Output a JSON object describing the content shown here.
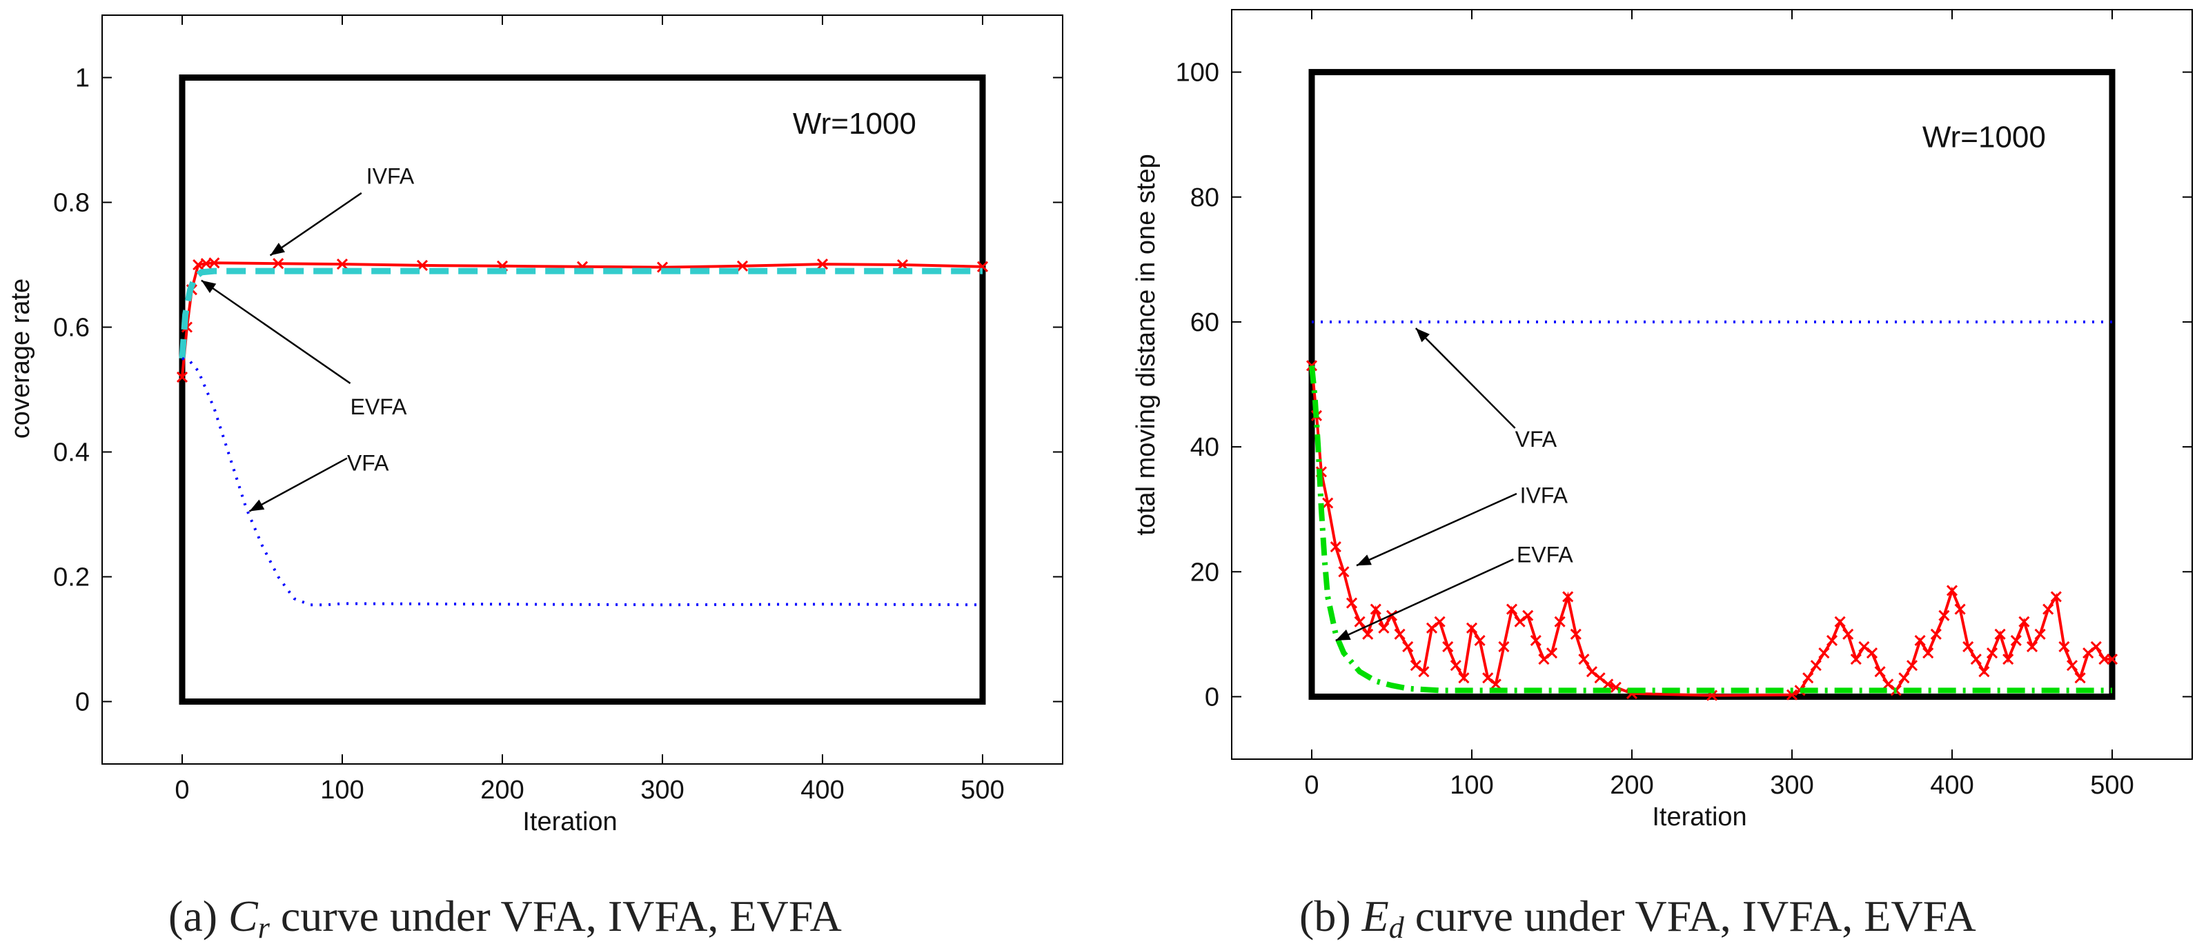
{
  "chart_data": [
    {
      "type": "line",
      "panel": "a",
      "xlabel": "Iteration",
      "ylabel": "coverage rate",
      "xlim": [
        -50,
        550
      ],
      "ylim": [
        -0.1,
        1.1
      ],
      "xticks": [
        0,
        100,
        200,
        300,
        400,
        500
      ],
      "yticks": [
        0,
        0.2,
        0.4,
        0.6,
        0.8,
        1
      ],
      "box": {
        "x0": 0,
        "x1": 500,
        "y0": 0,
        "y1": 1
      },
      "annotation": "Wr=1000",
      "series": [
        {
          "name": "IVFA",
          "color": "#ff0000",
          "style": "x-markers",
          "x": [
            0,
            3,
            6,
            10,
            15,
            20,
            60,
            100,
            150,
            200,
            250,
            300,
            350,
            400,
            450,
            500
          ],
          "y": [
            0.52,
            0.6,
            0.66,
            0.7,
            0.702,
            0.703,
            0.702,
            0.701,
            0.699,
            0.698,
            0.697,
            0.696,
            0.698,
            0.701,
            0.7,
            0.697
          ]
        },
        {
          "name": "EVFA",
          "color": "#33cccc",
          "style": "dashed",
          "x": [
            0,
            2,
            5,
            8,
            12,
            20,
            100,
            200,
            300,
            400,
            500
          ],
          "y": [
            0.55,
            0.62,
            0.66,
            0.68,
            0.688,
            0.69,
            0.69,
            0.69,
            0.69,
            0.69,
            0.69
          ]
        },
        {
          "name": "VFA",
          "color": "#0000ff",
          "style": "dotted",
          "x": [
            0,
            5,
            10,
            20,
            30,
            40,
            50,
            60,
            70,
            80,
            90,
            100,
            200,
            300,
            400,
            500
          ],
          "y": [
            0.55,
            0.545,
            0.53,
            0.47,
            0.39,
            0.31,
            0.25,
            0.2,
            0.165,
            0.155,
            0.155,
            0.157,
            0.156,
            0.155,
            0.156,
            0.155
          ]
        }
      ],
      "arrows": [
        {
          "label": "IVFA",
          "text_at": [
            115,
            0.83
          ],
          "from": [
            112,
            0.815
          ],
          "to": [
            55,
            0.715
          ]
        },
        {
          "label": "EVFA",
          "text_at": [
            105,
            0.46
          ],
          "from": [
            105,
            0.51
          ],
          "to": [
            12,
            0.675
          ]
        },
        {
          "label": "VFA",
          "text_at": [
            103,
            0.37
          ],
          "from": [
            103,
            0.39
          ],
          "to": [
            42,
            0.305
          ]
        }
      ]
    },
    {
      "type": "line",
      "panel": "b",
      "xlabel": "Iteration",
      "ylabel": "total moving distance in one step",
      "xlim": [
        -50,
        550
      ],
      "ylim": [
        -10,
        110
      ],
      "xticks": [
        0,
        100,
        200,
        300,
        400,
        500
      ],
      "yticks": [
        0,
        20,
        40,
        60,
        80,
        100
      ],
      "box": {
        "x0": 0,
        "x1": 500,
        "y0": 0,
        "y1": 100
      },
      "annotation": "Wr=1000",
      "series": [
        {
          "name": "VFA",
          "color": "#0000ff",
          "style": "dotted",
          "x": [
            0,
            100,
            200,
            300,
            400,
            500
          ],
          "y": [
            60,
            60,
            60,
            60,
            60,
            60
          ]
        },
        {
          "name": "IVFA",
          "color": "#ff0000",
          "style": "x-markers",
          "x": [
            0,
            3,
            6,
            10,
            15,
            20,
            25,
            30,
            35,
            40,
            45,
            50,
            55,
            60,
            65,
            70,
            75,
            80,
            85,
            90,
            95,
            100,
            105,
            110,
            115,
            120,
            125,
            130,
            135,
            140,
            145,
            150,
            155,
            160,
            165,
            170,
            175,
            180,
            185,
            190,
            200,
            250,
            300,
            305,
            310,
            315,
            320,
            325,
            330,
            335,
            340,
            345,
            350,
            355,
            360,
            365,
            370,
            375,
            380,
            385,
            390,
            395,
            400,
            405,
            410,
            415,
            420,
            425,
            430,
            435,
            440,
            445,
            450,
            455,
            460,
            465,
            470,
            475,
            480,
            485,
            490,
            495,
            500
          ],
          "y": [
            53,
            45,
            36,
            31,
            24,
            20,
            15,
            12,
            10,
            14,
            11,
            13,
            10,
            8,
            5,
            4,
            11,
            12,
            8,
            5,
            3,
            11,
            9,
            3,
            2,
            8,
            14,
            12,
            13,
            9,
            6,
            7,
            12,
            16,
            10,
            6,
            4,
            3,
            2,
            1.5,
            0.5,
            0.2,
            0.3,
            1,
            3,
            5,
            7,
            9,
            12,
            10,
            6,
            8,
            7,
            4,
            2,
            1,
            3,
            5,
            9,
            7,
            10,
            13,
            17,
            14,
            8,
            6,
            4,
            7,
            10,
            6,
            9,
            12,
            8,
            10,
            14,
            16,
            8,
            5,
            3,
            7,
            8,
            6,
            6
          ]
        },
        {
          "name": "EVFA",
          "color": "#00dd00",
          "style": "dash-dot",
          "x": [
            0,
            2,
            4,
            6,
            8,
            10,
            15,
            20,
            30,
            40,
            50,
            60,
            80,
            100,
            150,
            200,
            250,
            300,
            350,
            400,
            450,
            500
          ],
          "y": [
            53,
            48,
            40,
            30,
            22,
            16,
            10,
            7,
            4,
            2.5,
            1.8,
            1.3,
            1,
            1,
            1,
            1,
            1,
            1,
            1,
            1,
            1,
            1
          ]
        }
      ],
      "arrows": [
        {
          "label": "VFA",
          "text_at": [
            127,
            40
          ],
          "from": [
            127,
            43
          ],
          "to": [
            65,
            59
          ]
        },
        {
          "label": "IVFA",
          "text_at": [
            130,
            31
          ],
          "from": [
            128,
            32.5
          ],
          "to": [
            28,
            21
          ]
        },
        {
          "label": "EVFA",
          "text_at": [
            128,
            21.5
          ],
          "from": [
            126,
            22
          ],
          "to": [
            15,
            9
          ]
        }
      ]
    }
  ],
  "captions": {
    "a": {
      "prefix": "(a)",
      "symbol": "C",
      "sub": "r",
      "text": "curve under VFA, IVFA, EVFA"
    },
    "b": {
      "prefix": "(b)",
      "symbol": "E",
      "sub": "d",
      "text": "curve under VFA, IVFA, EVFA"
    }
  }
}
